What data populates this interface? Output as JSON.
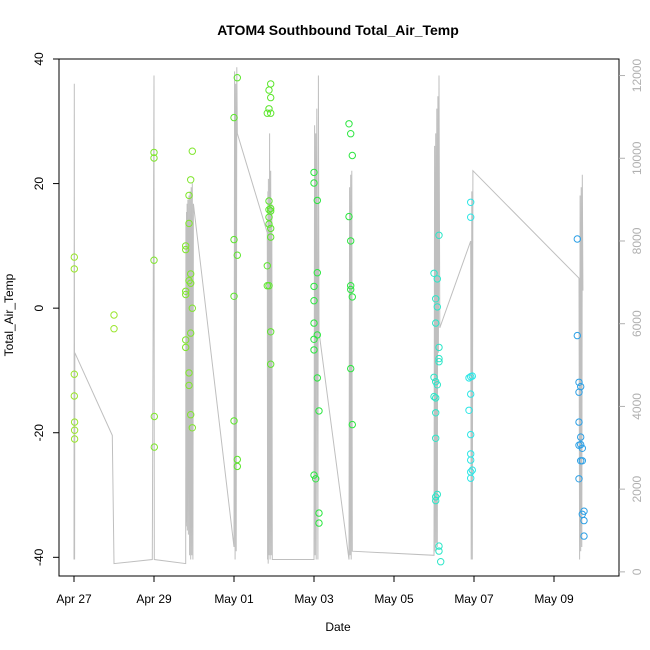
{
  "chart_data": {
    "type": "scatter",
    "title": "ATOM4 Southbound Total_Air_Temp",
    "xlabel": "Date",
    "ylabel": "Total_Air_Temp",
    "xlim": [
      "2023-04-26T15:00",
      "2023-05-10T15:00"
    ],
    "ylim": [
      -43,
      40
    ],
    "y2lim": [
      -100,
      12400
    ],
    "x_ticks": [
      {
        "label": "Apr 27",
        "date": "2023-04-27"
      },
      {
        "label": "Apr 29",
        "date": "2023-04-29"
      },
      {
        "label": "May 01",
        "date": "2023-05-01"
      },
      {
        "label": "May 03",
        "date": "2023-05-03"
      },
      {
        "label": "May 05",
        "date": "2023-05-05"
      },
      {
        "label": "May 07",
        "date": "2023-05-07"
      },
      {
        "label": "May 09",
        "date": "2023-05-09"
      }
    ],
    "y_ticks": [
      -40,
      -20,
      0,
      20,
      40
    ],
    "y_tick_labels": [
      "-40",
      "-20",
      "0",
      "20",
      "40"
    ],
    "y2_ticks": [
      0,
      2000,
      4000,
      6000,
      8000,
      10000,
      12000
    ],
    "y2_tick_labels": [
      "0",
      "2000",
      "4000",
      "6000",
      "8000",
      "10000",
      "12000"
    ],
    "grid": false,
    "point_series": {
      "name": "",
      "marker": "open-circle",
      "colors_by_time": [
        "#9ae62c",
        "#7fe62c",
        "#5ce62c",
        "#2ce640",
        "#2ce6c8",
        "#2ce6e6",
        "#2ca0e6"
      ],
      "points": [
        {
          "x": "2023-04-27T00:10",
          "y": 8.2
        },
        {
          "x": "2023-04-27T00:10",
          "y": 6.3
        },
        {
          "x": "2023-04-27T00:10",
          "y": -10.6
        },
        {
          "x": "2023-04-27T00:10",
          "y": -14.1
        },
        {
          "x": "2023-04-27T00:20",
          "y": -18.3
        },
        {
          "x": "2023-04-27T00:20",
          "y": -19.6
        },
        {
          "x": "2023-04-27T00:20",
          "y": -21.0
        },
        {
          "x": "2023-04-28T00:00",
          "y": -1.1
        },
        {
          "x": "2023-04-28T00:00",
          "y": -3.3
        },
        {
          "x": "2023-04-29T00:00",
          "y": 25.0
        },
        {
          "x": "2023-04-29T00:00",
          "y": 24.1
        },
        {
          "x": "2023-04-29T00:00",
          "y": 7.7
        },
        {
          "x": "2023-04-29T00:10",
          "y": -17.4
        },
        {
          "x": "2023-04-29T00:10",
          "y": -22.3
        },
        {
          "x": "2023-04-29T19:00",
          "y": 10.0
        },
        {
          "x": "2023-04-29T19:00",
          "y": 9.4
        },
        {
          "x": "2023-04-29T19:00",
          "y": 2.7
        },
        {
          "x": "2023-04-29T19:00",
          "y": 2.2
        },
        {
          "x": "2023-04-29T19:00",
          "y": -5.1
        },
        {
          "x": "2023-04-29T19:00",
          "y": -6.3
        },
        {
          "x": "2023-04-29T21:00",
          "y": 18.1
        },
        {
          "x": "2023-04-29T21:00",
          "y": 13.6
        },
        {
          "x": "2023-04-29T21:00",
          "y": 4.4
        },
        {
          "x": "2023-04-29T21:00",
          "y": -10.4
        },
        {
          "x": "2023-04-29T21:00",
          "y": -12.4
        },
        {
          "x": "2023-04-29T22:00",
          "y": 20.6
        },
        {
          "x": "2023-04-29T22:00",
          "y": 5.5
        },
        {
          "x": "2023-04-29T22:00",
          "y": 4.0
        },
        {
          "x": "2023-04-29T22:00",
          "y": -4.0
        },
        {
          "x": "2023-04-29T22:00",
          "y": -17.1
        },
        {
          "x": "2023-04-29T23:00",
          "y": 25.2
        },
        {
          "x": "2023-04-29T23:00",
          "y": 0.0
        },
        {
          "x": "2023-04-29T23:00",
          "y": -19.2
        },
        {
          "x": "2023-05-01T00:00",
          "y": 30.6
        },
        {
          "x": "2023-05-01T00:00",
          "y": 11.0
        },
        {
          "x": "2023-05-01T00:00",
          "y": 1.9
        },
        {
          "x": "2023-05-01T00:00",
          "y": -18.1
        },
        {
          "x": "2023-05-01T02:00",
          "y": 37.0
        },
        {
          "x": "2023-05-01T02:00",
          "y": 8.5
        },
        {
          "x": "2023-05-01T02:00",
          "y": -24.3
        },
        {
          "x": "2023-05-01T02:00",
          "y": -25.4
        },
        {
          "x": "2023-05-01T20:00",
          "y": 31.3
        },
        {
          "x": "2023-05-01T20:00",
          "y": 6.8
        },
        {
          "x": "2023-05-01T20:00",
          "y": 3.6
        },
        {
          "x": "2023-05-01T21:00",
          "y": 35.0
        },
        {
          "x": "2023-05-01T21:00",
          "y": 32.0
        },
        {
          "x": "2023-05-01T21:00",
          "y": 17.2
        },
        {
          "x": "2023-05-01T21:00",
          "y": 15.8
        },
        {
          "x": "2023-05-01T21:00",
          "y": 14.6
        },
        {
          "x": "2023-05-01T21:00",
          "y": 13.5
        },
        {
          "x": "2023-05-01T21:00",
          "y": 3.6
        },
        {
          "x": "2023-05-01T22:00",
          "y": 36.0
        },
        {
          "x": "2023-05-01T22:00",
          "y": 33.8
        },
        {
          "x": "2023-05-01T22:00",
          "y": 31.3
        },
        {
          "x": "2023-05-01T22:00",
          "y": 16.0
        },
        {
          "x": "2023-05-01T22:00",
          "y": 15.6
        },
        {
          "x": "2023-05-01T22:00",
          "y": 12.8
        },
        {
          "x": "2023-05-01T22:00",
          "y": 11.4
        },
        {
          "x": "2023-05-01T22:00",
          "y": -3.8
        },
        {
          "x": "2023-05-01T22:00",
          "y": -9.0
        },
        {
          "x": "2023-05-03T00:00",
          "y": 21.8
        },
        {
          "x": "2023-05-03T00:00",
          "y": 20.1
        },
        {
          "x": "2023-05-03T00:00",
          "y": 3.5
        },
        {
          "x": "2023-05-03T00:00",
          "y": 1.2
        },
        {
          "x": "2023-05-03T00:00",
          "y": -2.4
        },
        {
          "x": "2023-05-03T00:00",
          "y": -5.0
        },
        {
          "x": "2023-05-03T00:00",
          "y": -6.7
        },
        {
          "x": "2023-05-03T00:00",
          "y": -26.8
        },
        {
          "x": "2023-05-03T01:00",
          "y": -27.4
        },
        {
          "x": "2023-05-03T02:00",
          "y": 17.3
        },
        {
          "x": "2023-05-03T02:00",
          "y": 5.7
        },
        {
          "x": "2023-05-03T02:00",
          "y": -4.3
        },
        {
          "x": "2023-05-03T02:00",
          "y": -11.2
        },
        {
          "x": "2023-05-03T03:00",
          "y": -16.5
        },
        {
          "x": "2023-05-03T03:00",
          "y": -32.9
        },
        {
          "x": "2023-05-03T03:00",
          "y": -34.5
        },
        {
          "x": "2023-05-03T21:00",
          "y": 29.6
        },
        {
          "x": "2023-05-03T22:00",
          "y": 28.0
        },
        {
          "x": "2023-05-03T21:00",
          "y": 14.7
        },
        {
          "x": "2023-05-03T22:00",
          "y": 10.8
        },
        {
          "x": "2023-05-03T22:00",
          "y": 3.6
        },
        {
          "x": "2023-05-03T22:00",
          "y": 3.0
        },
        {
          "x": "2023-05-03T23:00",
          "y": 1.8
        },
        {
          "x": "2023-05-03T22:00",
          "y": -9.7
        },
        {
          "x": "2023-05-03T23:00",
          "y": -18.7
        },
        {
          "x": "2023-05-03T23:00",
          "y": 24.5
        },
        {
          "x": "2023-05-06T00:00",
          "y": 5.6
        },
        {
          "x": "2023-05-06T00:00",
          "y": -11.1
        },
        {
          "x": "2023-05-06T00:00",
          "y": -14.2
        },
        {
          "x": "2023-05-06T01:00",
          "y": 1.5
        },
        {
          "x": "2023-05-06T01:00",
          "y": -2.4
        },
        {
          "x": "2023-05-06T01:00",
          "y": -11.8
        },
        {
          "x": "2023-05-06T01:00",
          "y": -14.4
        },
        {
          "x": "2023-05-06T01:00",
          "y": -16.8
        },
        {
          "x": "2023-05-06T01:00",
          "y": -20.9
        },
        {
          "x": "2023-05-06T01:00",
          "y": -30.3
        },
        {
          "x": "2023-05-06T01:00",
          "y": -30.9
        },
        {
          "x": "2023-05-06T02:00",
          "y": 0.2
        },
        {
          "x": "2023-05-06T02:00",
          "y": 4.7
        },
        {
          "x": "2023-05-06T02:00",
          "y": -12.3
        },
        {
          "x": "2023-05-06T02:00",
          "y": -29.9
        },
        {
          "x": "2023-05-06T03:00",
          "y": 11.7
        },
        {
          "x": "2023-05-06T03:00",
          "y": -6.3
        },
        {
          "x": "2023-05-06T03:00",
          "y": -8.1
        },
        {
          "x": "2023-05-06T03:00",
          "y": -8.6
        },
        {
          "x": "2023-05-06T03:00",
          "y": -38.2
        },
        {
          "x": "2023-05-06T03:00",
          "y": -39.0
        },
        {
          "x": "2023-05-06T04:00",
          "y": -40.7
        },
        {
          "x": "2023-05-06T21:00",
          "y": -11.2
        },
        {
          "x": "2023-05-06T21:00",
          "y": -16.4
        },
        {
          "x": "2023-05-06T22:00",
          "y": 17.0
        },
        {
          "x": "2023-05-06T22:00",
          "y": 14.6
        },
        {
          "x": "2023-05-06T22:00",
          "y": -11.0
        },
        {
          "x": "2023-05-06T22:00",
          "y": -13.8
        },
        {
          "x": "2023-05-06T22:00",
          "y": -20.3
        },
        {
          "x": "2023-05-06T22:00",
          "y": -23.4
        },
        {
          "x": "2023-05-06T22:00",
          "y": -24.4
        },
        {
          "x": "2023-05-06T22:00",
          "y": -26.3
        },
        {
          "x": "2023-05-06T22:00",
          "y": -27.3
        },
        {
          "x": "2023-05-06T23:00",
          "y": -10.9
        },
        {
          "x": "2023-05-06T23:00",
          "y": -26.0
        },
        {
          "x": "2023-05-09T14:00",
          "y": 11.1
        },
        {
          "x": "2023-05-09T14:00",
          "y": -4.4
        },
        {
          "x": "2023-05-09T15:00",
          "y": -11.9
        },
        {
          "x": "2023-05-09T15:00",
          "y": -13.5
        },
        {
          "x": "2023-05-09T15:00",
          "y": -18.3
        },
        {
          "x": "2023-05-09T15:00",
          "y": -22.0
        },
        {
          "x": "2023-05-09T15:00",
          "y": -27.4
        },
        {
          "x": "2023-05-09T16:00",
          "y": -12.6
        },
        {
          "x": "2023-05-09T16:00",
          "y": -20.7
        },
        {
          "x": "2023-05-09T16:00",
          "y": -21.9
        },
        {
          "x": "2023-05-09T16:00",
          "y": -24.5
        },
        {
          "x": "2023-05-09T17:00",
          "y": -22.5
        },
        {
          "x": "2023-05-09T17:00",
          "y": -24.5
        },
        {
          "x": "2023-05-09T17:00",
          "y": -33.1
        },
        {
          "x": "2023-05-09T18:00",
          "y": -32.6
        },
        {
          "x": "2023-05-09T18:00",
          "y": -34.1
        },
        {
          "x": "2023-05-09T18:00",
          "y": -36.6
        }
      ]
    },
    "line_series": {
      "name": "",
      "axis": "right",
      "color": "#bfbfbf",
      "points": [
        {
          "x": "2023-04-27T00:00",
          "y": 300
        },
        {
          "x": "2023-04-27T00:10",
          "y": 11800
        },
        {
          "x": "2023-04-27T00:20",
          "y": 300
        },
        {
          "x": "2023-04-27T00:30",
          "y": 5300
        },
        {
          "x": "2023-04-27T23:00",
          "y": 3300
        },
        {
          "x": "2023-04-28T00:00",
          "y": 200
        },
        {
          "x": "2023-04-28T23:00",
          "y": 300
        },
        {
          "x": "2023-04-29T00:00",
          "y": 12000
        },
        {
          "x": "2023-04-29T00:10",
          "y": 300
        },
        {
          "x": "2023-04-29T19:00",
          "y": 200
        },
        {
          "x": "2023-04-29T19:10",
          "y": 8400
        },
        {
          "x": "2023-04-29T19:20",
          "y": 1200
        },
        {
          "x": "2023-04-29T19:30",
          "y": 8700
        },
        {
          "x": "2023-04-29T19:40",
          "y": 1100
        },
        {
          "x": "2023-04-29T19:50",
          "y": 8900
        },
        {
          "x": "2023-04-29T20:00",
          "y": 1000
        },
        {
          "x": "2023-04-29T20:20",
          "y": 9000
        },
        {
          "x": "2023-04-29T20:40",
          "y": 900
        },
        {
          "x": "2023-04-29T21:00",
          "y": 9100
        },
        {
          "x": "2023-04-29T21:20",
          "y": 400
        },
        {
          "x": "2023-04-29T21:40",
          "y": 9200
        },
        {
          "x": "2023-04-29T22:00",
          "y": 300
        },
        {
          "x": "2023-04-29T22:20",
          "y": 9300
        },
        {
          "x": "2023-04-29T22:40",
          "y": 400
        },
        {
          "x": "2023-04-29T23:00",
          "y": 9400
        },
        {
          "x": "2023-04-29T23:20",
          "y": 300
        },
        {
          "x": "2023-04-29T23:40",
          "y": 8900
        },
        {
          "x": "2023-05-01T00:00",
          "y": 600
        },
        {
          "x": "2023-05-01T00:20",
          "y": 12100
        },
        {
          "x": "2023-05-01T00:40",
          "y": 300
        },
        {
          "x": "2023-05-01T01:00",
          "y": 11800
        },
        {
          "x": "2023-05-01T01:20",
          "y": 500
        },
        {
          "x": "2023-05-01T01:40",
          "y": 12200
        },
        {
          "x": "2023-05-01T02:00",
          "y": 10600
        },
        {
          "x": "2023-05-01T20:00",
          "y": 8200
        },
        {
          "x": "2023-05-01T20:10",
          "y": 300
        },
        {
          "x": "2023-05-01T20:20",
          "y": 9200
        },
        {
          "x": "2023-05-01T20:30",
          "y": 200
        },
        {
          "x": "2023-05-01T20:40",
          "y": 9500
        },
        {
          "x": "2023-05-01T21:00",
          "y": 400
        },
        {
          "x": "2023-05-01T21:20",
          "y": 10600
        },
        {
          "x": "2023-05-01T21:40",
          "y": 300
        },
        {
          "x": "2023-05-01T22:00",
          "y": 9700
        },
        {
          "x": "2023-05-01T22:20",
          "y": 400
        },
        {
          "x": "2023-05-01T22:40",
          "y": 8900
        },
        {
          "x": "2023-05-01T23:00",
          "y": 300
        },
        {
          "x": "2023-05-03T00:00",
          "y": 300
        },
        {
          "x": "2023-05-03T00:20",
          "y": 10800
        },
        {
          "x": "2023-05-03T00:40",
          "y": 400
        },
        {
          "x": "2023-05-03T01:00",
          "y": 10600
        },
        {
          "x": "2023-05-03T01:20",
          "y": 300
        },
        {
          "x": "2023-05-03T01:40",
          "y": 11200
        },
        {
          "x": "2023-05-03T02:00",
          "y": 6400
        },
        {
          "x": "2023-05-03T02:20",
          "y": 300
        },
        {
          "x": "2023-05-03T02:40",
          "y": 12000
        },
        {
          "x": "2023-05-03T03:00",
          "y": 5800
        },
        {
          "x": "2023-05-03T21:00",
          "y": 300
        },
        {
          "x": "2023-05-03T21:20",
          "y": 9300
        },
        {
          "x": "2023-05-03T21:40",
          "y": 400
        },
        {
          "x": "2023-05-03T22:00",
          "y": 9600
        },
        {
          "x": "2023-05-03T22:20",
          "y": 300
        },
        {
          "x": "2023-05-03T22:40",
          "y": 9700
        },
        {
          "x": "2023-05-03T23:00",
          "y": 500
        },
        {
          "x": "2023-05-06T00:00",
          "y": 400
        },
        {
          "x": "2023-05-06T00:20",
          "y": 10300
        },
        {
          "x": "2023-05-06T00:40",
          "y": 500
        },
        {
          "x": "2023-05-06T01:00",
          "y": 10600
        },
        {
          "x": "2023-05-06T01:20",
          "y": 700
        },
        {
          "x": "2023-05-06T01:40",
          "y": 11200
        },
        {
          "x": "2023-05-06T02:00",
          "y": 600
        },
        {
          "x": "2023-05-06T02:20",
          "y": 11500
        },
        {
          "x": "2023-05-06T02:40",
          "y": 5300
        },
        {
          "x": "2023-05-06T03:00",
          "y": 12000
        },
        {
          "x": "2023-05-06T03:30",
          "y": 5900
        },
        {
          "x": "2023-05-06T22:00",
          "y": 8000
        },
        {
          "x": "2023-05-06T22:20",
          "y": 300
        },
        {
          "x": "2023-05-06T22:40",
          "y": 9200
        },
        {
          "x": "2023-05-06T23:00",
          "y": 300
        },
        {
          "x": "2023-05-06T23:20",
          "y": 9700
        },
        {
          "x": "2023-05-09T15:00",
          "y": 7100
        },
        {
          "x": "2023-05-09T15:20",
          "y": 300
        },
        {
          "x": "2023-05-09T15:40",
          "y": 9100
        },
        {
          "x": "2023-05-09T16:00",
          "y": 500
        },
        {
          "x": "2023-05-09T16:20",
          "y": 9300
        },
        {
          "x": "2023-05-09T16:40",
          "y": 600
        },
        {
          "x": "2023-05-09T17:00",
          "y": 9600
        },
        {
          "x": "2023-05-09T17:20",
          "y": 6800
        }
      ]
    }
  }
}
